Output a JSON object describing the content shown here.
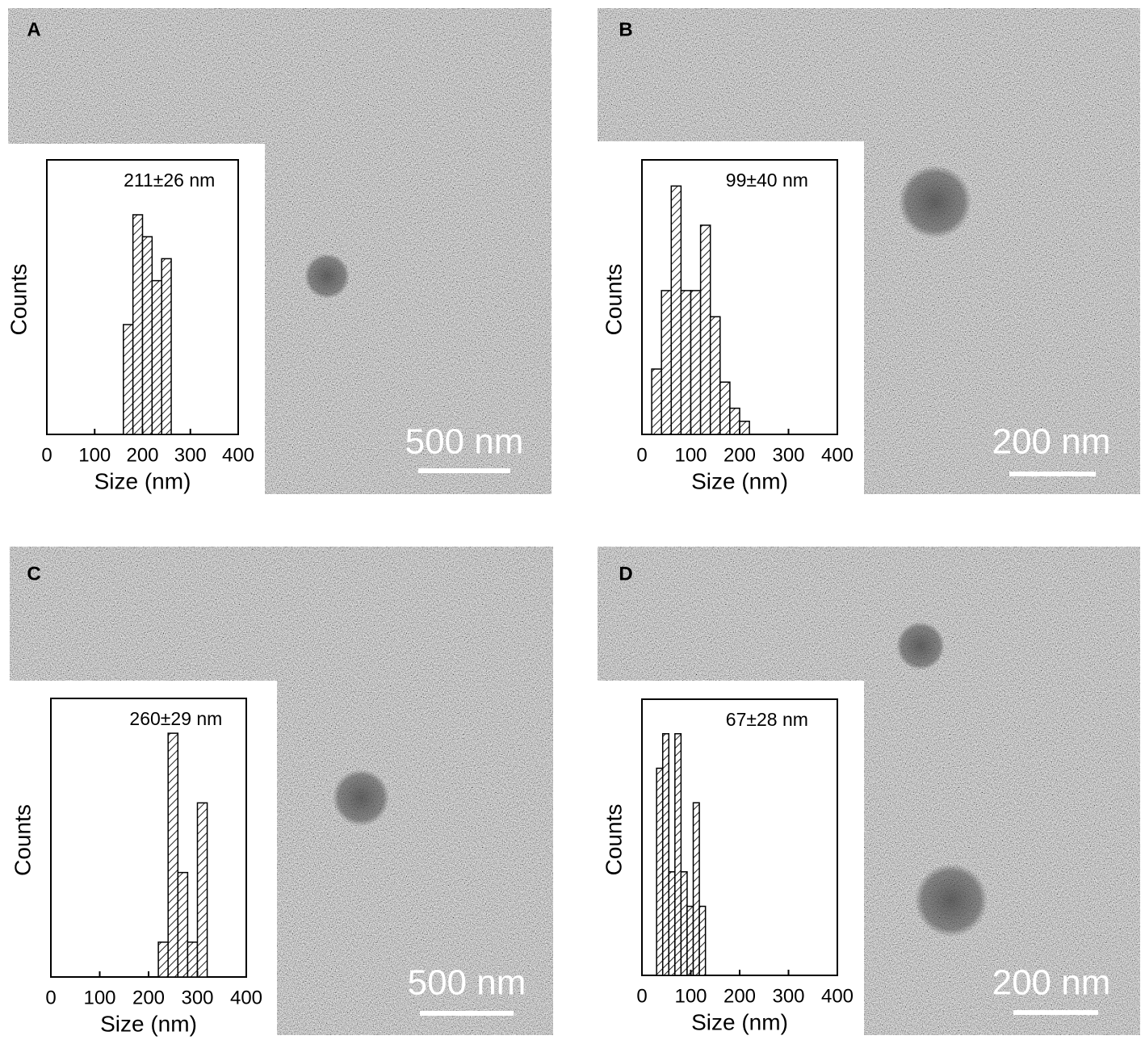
{
  "chart_data": [
    {
      "type": "histogram",
      "panel_label": "A",
      "annotation": "211±26 nm",
      "scale_bar": "500 nm",
      "x_label": "Size (nm)",
      "y_label": "Counts",
      "color": "#222222",
      "bins": [
        160,
        180,
        200,
        220,
        240,
        260
      ],
      "counts": [
        5,
        10,
        9,
        7,
        8
      ],
      "xlim": [
        0,
        400
      ],
      "xticks": [
        0,
        100,
        200,
        300,
        400
      ],
      "ylim": [
        0,
        12.5
      ]
    },
    {
      "type": "histogram",
      "panel_label": "B",
      "annotation": "99±40 nm",
      "scale_bar": "200 nm",
      "x_label": "Size (nm)",
      "y_label": "Counts",
      "color": "#222222",
      "bins": [
        20,
        40,
        60,
        80,
        100,
        120,
        140,
        160,
        180,
        200,
        220
      ],
      "counts": [
        5,
        11,
        19,
        11,
        11,
        16,
        9,
        4,
        2,
        1
      ],
      "xlim": [
        0,
        400
      ],
      "xticks": [
        0,
        100,
        200,
        300,
        400
      ],
      "ylim": [
        0,
        21
      ]
    },
    {
      "type": "histogram",
      "panel_label": "C",
      "annotation": "260±29 nm",
      "scale_bar": "500 nm",
      "x_label": "Size (nm)",
      "y_label": "Counts",
      "color": "#222222",
      "bins": [
        220,
        240,
        260,
        280,
        300,
        320
      ],
      "counts": [
        1,
        7,
        3,
        1,
        5
      ],
      "xlim": [
        0,
        400
      ],
      "xticks": [
        0,
        100,
        200,
        300,
        400
      ],
      "ylim": [
        0,
        8
      ]
    },
    {
      "type": "histogram",
      "panel_label": "D",
      "annotation": "67±28 nm",
      "scale_bar": "200 nm",
      "x_label": "Size (nm)",
      "y_label": "Counts",
      "color": "#222222",
      "bins": [
        30,
        42.5,
        55,
        67.5,
        80,
        92.5,
        105,
        117.5,
        130
      ],
      "counts": [
        6,
        7,
        3,
        7,
        3,
        2,
        5,
        2
      ],
      "xlim": [
        0,
        400
      ],
      "xticks": [
        0,
        100,
        200,
        300,
        400
      ],
      "ylim": [
        0,
        8
      ]
    }
  ]
}
